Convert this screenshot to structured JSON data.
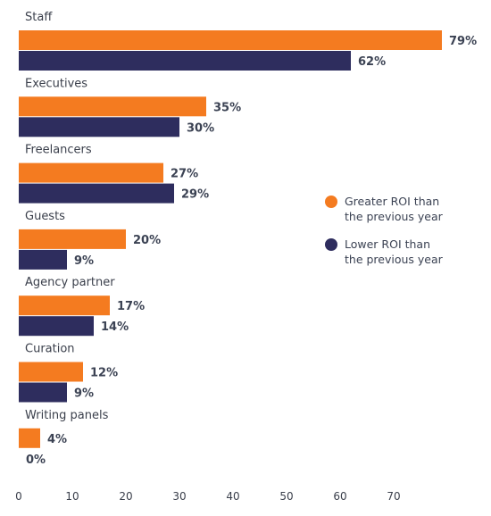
{
  "chart_data": {
    "type": "bar",
    "orientation": "horizontal",
    "title": "",
    "xlabel": "",
    "ylabel": "",
    "categories": [
      "Staff",
      "Executives",
      "Freelancers",
      "Guests",
      "Agency partner",
      "Curation",
      "Writing panels"
    ],
    "series": [
      {
        "name": "Greater ROI than the previous year",
        "legend_lines": [
          "Greater ROI than",
          "the previous year"
        ],
        "color": "#F47B20",
        "values": [
          79,
          35,
          27,
          20,
          17,
          12,
          4
        ],
        "labels": [
          "79%",
          "35%",
          "27%",
          "20%",
          "17%",
          "12%",
          "4%"
        ]
      },
      {
        "name": "Lower ROI than the previous year",
        "legend_lines": [
          "Lower ROI than",
          "the previous year"
        ],
        "color": "#2E2D5E",
        "values": [
          62,
          30,
          29,
          9,
          14,
          9,
          0
        ],
        "labels": [
          "62%",
          "30%",
          "29%",
          "9%",
          "14%",
          "9%",
          "0%"
        ]
      }
    ],
    "xlim": [
      0,
      79
    ],
    "xticks": [
      "0",
      "10",
      "20",
      "30",
      "40",
      "50",
      "60",
      "70"
    ],
    "grid": false,
    "legend_position": "right"
  }
}
